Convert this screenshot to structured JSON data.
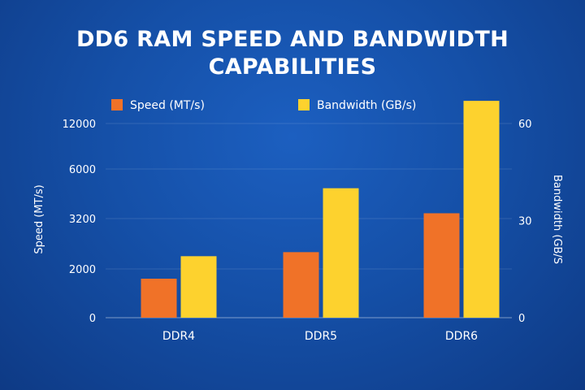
{
  "chart_data": {
    "type": "bar",
    "title_lines": [
      "DD6 RAM SPEED AND BANDWIDTH",
      "CAPABILITIES"
    ],
    "categories": [
      "DDR4",
      "DDR5",
      "DDR6"
    ],
    "series": [
      {
        "name": "Speed (MT/s)",
        "axis": "left",
        "color": "#f07228",
        "values": [
          1600,
          2400,
          3500
        ]
      },
      {
        "name": "Bandwidth (GB/s)",
        "axis": "right",
        "color": "#fdd22e",
        "values": [
          19,
          40,
          67
        ]
      }
    ],
    "left_axis": {
      "label": "Speed (MT/s)",
      "tick_labels": [
        "0",
        "2000",
        "3200",
        "6000",
        "12000"
      ]
    },
    "right_axis": {
      "label": "Bandwidth (GB/S",
      "tick_labels": [
        "0",
        "30",
        "60"
      ],
      "ylim": [
        0,
        60
      ]
    },
    "legend_position": "top",
    "grid": true
  }
}
